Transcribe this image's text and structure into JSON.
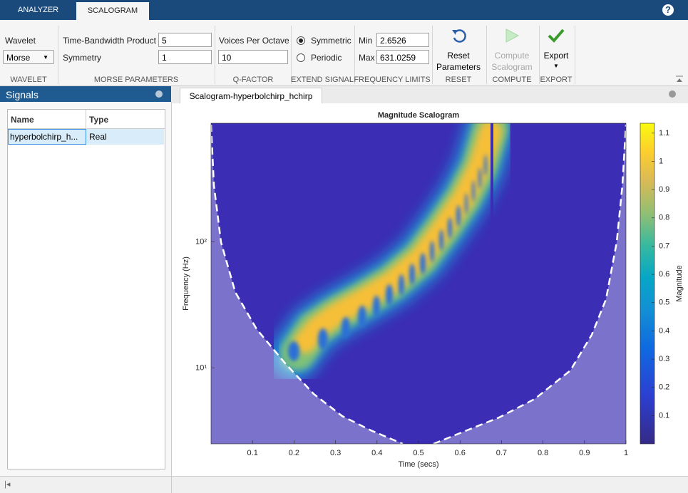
{
  "top_bar": {
    "tabs": [
      "ANALYZER",
      "SCALOGRAM"
    ],
    "help": "?"
  },
  "toolstrip": {
    "wavelet": {
      "label": "Wavelet",
      "value": "Morse",
      "section": "WAVELET"
    },
    "morse": {
      "fields": [
        {
          "label": "Time-Bandwidth Product",
          "value": "5"
        },
        {
          "label": "Symmetry",
          "value": "1"
        }
      ],
      "section": "MORSE PARAMETERS"
    },
    "q_factor": {
      "label": "Voices Per Octave",
      "value": "10",
      "section": "Q-FACTOR"
    },
    "extend_signal": {
      "options": [
        "Symmetric",
        "Periodic"
      ],
      "selected": 0,
      "section": "EXTEND SIGNAL"
    },
    "frequency_limits": {
      "fields": [
        {
          "label": "Min",
          "value": "2.6526"
        },
        {
          "label": "Max",
          "value": "631.0259"
        }
      ],
      "section": "FREQUENCY LIMITS"
    },
    "reset": {
      "label": [
        "Reset",
        "Parameters"
      ],
      "section": "RESET"
    },
    "compute": {
      "label": [
        "Compute",
        "Scalogram"
      ],
      "section": "COMPUTE"
    },
    "export": {
      "label": "Export",
      "section": "EXPORT"
    }
  },
  "signals_panel": {
    "title": "Signals",
    "table": {
      "headers": [
        "Name",
        "Type"
      ],
      "rows": [
        [
          "hyperbolchirp_h...",
          "Real"
        ]
      ]
    }
  },
  "document_tab": "Scalogram-hyperbolchirp_hchirp",
  "chart_data": {
    "type": "scalogram",
    "title": "Magnitude Scalogram",
    "x_label": "Time (secs)",
    "y_label": "Frequency (Hz)",
    "xlim": [
      0,
      1
    ],
    "xticks": [
      0.1,
      0.2,
      0.3,
      0.4,
      0.5,
      0.6,
      0.7,
      0.8,
      0.9,
      1
    ],
    "ylim": [
      2.5,
      875
    ],
    "y_scale": "log",
    "yticks": [
      {
        "value": 10,
        "label": "10¹"
      },
      {
        "value": 100,
        "label": "10²"
      }
    ],
    "colorbar": {
      "label": "Magnitude",
      "lim": [
        0,
        1.135
      ],
      "ticks": [
        0.1,
        0.2,
        0.3,
        0.4,
        0.5,
        0.6,
        0.7,
        0.8,
        0.9,
        1,
        1.1
      ]
    }
  }
}
